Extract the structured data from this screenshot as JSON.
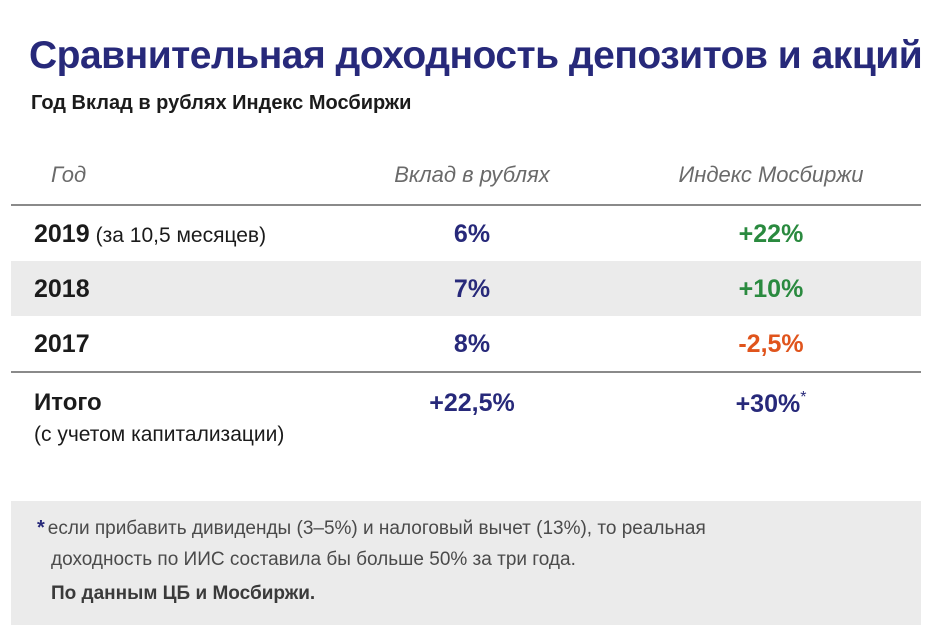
{
  "title": "Сравнительная доходность депозитов и акций",
  "subtitle": "Год Вклад в рублях Индекс Мосбиржи",
  "table": {
    "headers": {
      "year": "Год",
      "deposit": "Вклад в рублях",
      "index": "Индекс Мосбиржи"
    },
    "rows": [
      {
        "year": "2019",
        "note": "(за 10,5 месяцев)",
        "deposit": "6%",
        "index": "+22%"
      },
      {
        "year": "2018",
        "note": "",
        "deposit": "7%",
        "index": "+10%"
      },
      {
        "year": "2017",
        "note": "",
        "deposit": "8%",
        "index": "-2,5%"
      }
    ],
    "total": {
      "label": "Итого",
      "sublabel": "(с учетом капитализации)",
      "deposit": "+22,5%",
      "index": "+30%",
      "index_mark": "*"
    }
  },
  "footnote": {
    "mark": "*",
    "line1": "если прибавить дивиденды (3–5%) и налоговый вычет (13%), то реальная",
    "line2": "доходность по ИИС составила бы больше 50% за три года.",
    "source": "По данным ЦБ и Мосбиржи."
  },
  "colors": {
    "title": "#27297a",
    "positive": "#2a8a3f",
    "negative": "#e0541c",
    "shade": "#ebebeb"
  }
}
